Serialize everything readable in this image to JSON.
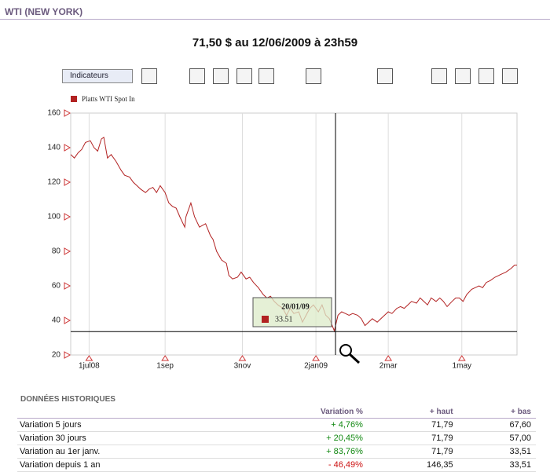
{
  "header": {
    "title": "WTI (NEW YORK)",
    "price_line": "71,50 $ au 12/06/2009 à 23h59"
  },
  "toolbar": {
    "indicators_button": "Indicateurs"
  },
  "chart_data": {
    "type": "line",
    "series": [
      {
        "name": "Platts WTI Spot In",
        "color": "#b22222",
        "x": [
          -15,
          -12,
          -9,
          -6,
          -3,
          1,
          4,
          7,
          10,
          12,
          15,
          18,
          22,
          26,
          29,
          33,
          36,
          39,
          42,
          46,
          49,
          52,
          55,
          58,
          62,
          65,
          68,
          71,
          74,
          78,
          79,
          83,
          86,
          90,
          95,
          99,
          101,
          104,
          108,
          112,
          114,
          117,
          121,
          124,
          128,
          131,
          134,
          138,
          142,
          145,
          148,
          151,
          154,
          158,
          161,
          164,
          167,
          171,
          174,
          177,
          180,
          183,
          187,
          190,
          193,
          196,
          200,
          203,
          206,
          209,
          212,
          215,
          219,
          222,
          225,
          228,
          231,
          235,
          238,
          241,
          244,
          247,
          251,
          254,
          257,
          260,
          263,
          267,
          270,
          273,
          276,
          279,
          283,
          286,
          289,
          292,
          296,
          299,
          302,
          305,
          308,
          312,
          315,
          318,
          321,
          324,
          327,
          331,
          334,
          337,
          340,
          344,
          347,
          349
        ],
        "values": [
          136,
          134,
          137,
          139,
          143,
          144,
          140,
          138,
          145,
          146,
          134,
          136,
          132,
          127,
          124,
          123,
          120,
          118,
          116,
          114,
          116,
          117,
          114,
          118,
          114,
          108,
          106,
          105,
          100,
          94,
          100,
          108,
          100,
          94,
          96,
          89,
          87,
          80,
          75,
          73,
          66,
          64,
          65,
          68,
          64,
          65,
          62,
          59,
          55,
          53,
          54,
          51,
          49,
          47,
          43,
          47,
          44,
          45,
          39,
          43,
          47,
          49,
          45,
          49,
          43,
          41,
          34,
          43,
          45,
          44,
          43,
          44,
          43,
          41,
          37,
          39,
          41,
          39,
          41,
          43,
          45,
          44,
          47,
          48,
          47,
          49,
          51,
          50,
          53,
          51,
          49,
          53,
          51,
          53,
          51,
          48,
          51,
          53,
          53,
          51,
          55,
          58,
          59,
          60,
          59,
          62,
          63,
          65,
          66,
          67,
          68,
          70,
          72,
          72
        ]
      }
    ],
    "xlim": [
      -15,
      349
    ],
    "ylim": [
      20,
      160
    ],
    "yticks": [
      20,
      40,
      60,
      80,
      100,
      120,
      140,
      160
    ],
    "xticks": [
      {
        "value": 0,
        "label": "1jul08"
      },
      {
        "value": 62,
        "label": "1sep"
      },
      {
        "value": 125,
        "label": "3nov"
      },
      {
        "value": 185,
        "label": "2jan09"
      },
      {
        "value": 244,
        "label": "2mar"
      },
      {
        "value": 304,
        "label": "1may"
      }
    ],
    "grid": true,
    "tooltip": {
      "date": "20/01/09",
      "value": 33.51
    }
  },
  "table": {
    "title": "DONNÉES HISTORIQUES",
    "columns": [
      "",
      "Variation %",
      "+ haut",
      "+ bas"
    ],
    "rows": [
      [
        "Variation 5 jours",
        "+ 4,76%",
        "71,79",
        "67,60"
      ],
      [
        "Variation 30 jours",
        "+ 20,45%",
        "71,79",
        "57,00"
      ],
      [
        "Variation au 1er janv.",
        "+ 83,76%",
        "71,79",
        "33,51"
      ],
      [
        "Variation depuis 1 an",
        "- 46,49%",
        "146,35",
        "33,51"
      ]
    ]
  }
}
